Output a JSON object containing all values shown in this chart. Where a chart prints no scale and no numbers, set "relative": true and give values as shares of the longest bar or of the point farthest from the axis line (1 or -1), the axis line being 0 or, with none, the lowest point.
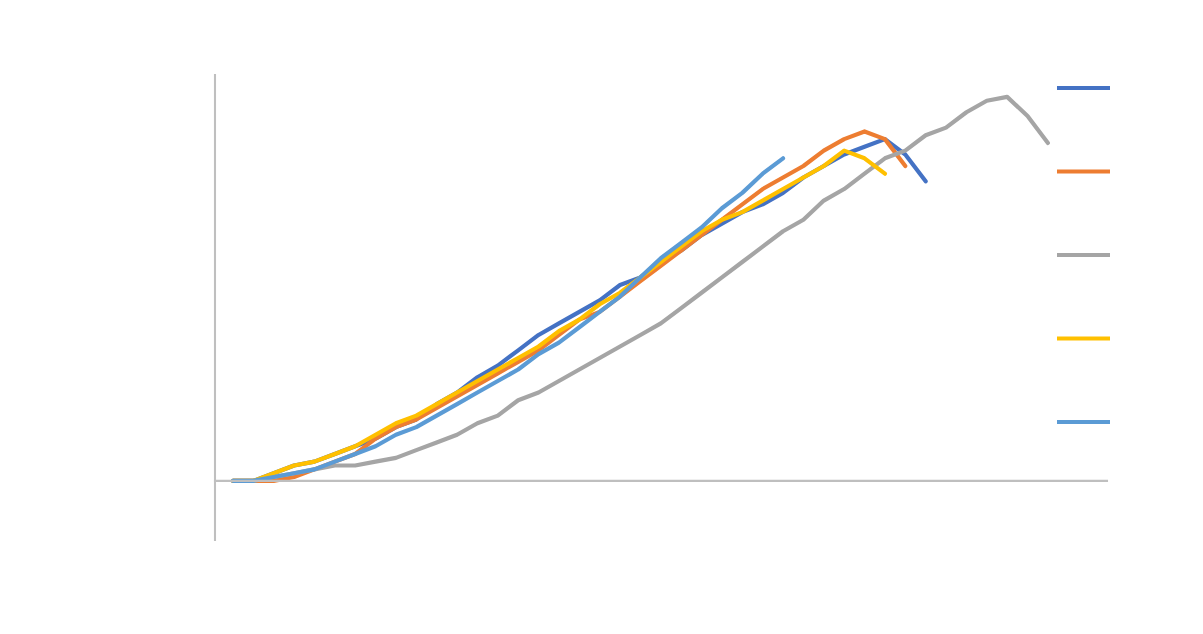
{
  "chart_data": {
    "type": "line",
    "relative": true,
    "grid": false,
    "categories": [
      null,
      null,
      null,
      null,
      null,
      null,
      null,
      null,
      null,
      null,
      null,
      null,
      null,
      null,
      null,
      null,
      null,
      null,
      null,
      null,
      null,
      null,
      null,
      null,
      null,
      null,
      null,
      null,
      null,
      null,
      null,
      null,
      null,
      null,
      null,
      null,
      null,
      null,
      null,
      null,
      null
    ],
    "series": [
      {
        "color": "#4472c4",
        "values": [
          0,
          0,
          0.02,
          0.04,
          0.05,
          0.07,
          0.09,
          0.11,
          0.14,
          0.16,
          0.2,
          0.23,
          0.27,
          0.3,
          0.34,
          0.38,
          0.41,
          0.44,
          0.47,
          0.51,
          0.53,
          0.57,
          0.6,
          0.64,
          0.67,
          0.7,
          0.72,
          0.75,
          0.79,
          0.82,
          0.85,
          0.87,
          0.89,
          0.85,
          0.78,
          null,
          null,
          null,
          null,
          null,
          null
        ]
      },
      {
        "color": "#ed7d31",
        "values": [
          0,
          0,
          0,
          0.01,
          0.03,
          0.05,
          0.07,
          0.11,
          0.14,
          0.16,
          0.19,
          0.22,
          0.25,
          0.28,
          0.31,
          0.34,
          0.38,
          0.42,
          0.44,
          0.48,
          0.52,
          0.56,
          0.6,
          0.64,
          0.68,
          0.72,
          0.76,
          0.79,
          0.82,
          0.86,
          0.89,
          0.91,
          0.89,
          0.82,
          null,
          null,
          null,
          null,
          null,
          null,
          null
        ]
      },
      {
        "color": "#a5a5a5",
        "values": [
          0,
          0,
          0.01,
          0.02,
          0.03,
          0.04,
          0.04,
          0.05,
          0.06,
          0.08,
          0.1,
          0.12,
          0.15,
          0.17,
          0.21,
          0.23,
          0.26,
          0.29,
          0.32,
          0.35,
          0.38,
          0.41,
          0.45,
          0.49,
          0.53,
          0.57,
          0.61,
          0.65,
          0.68,
          0.73,
          0.76,
          0.8,
          0.84,
          0.86,
          0.9,
          0.92,
          0.96,
          0.99,
          1,
          0.95,
          0.88
        ]
      },
      {
        "color": "#ffc000",
        "values": [
          0,
          0,
          0.02,
          0.04,
          0.05,
          0.07,
          0.09,
          0.12,
          0.15,
          0.17,
          0.2,
          0.23,
          0.26,
          0.29,
          0.32,
          0.35,
          0.39,
          0.42,
          0.46,
          0.49,
          0.53,
          0.57,
          0.61,
          0.65,
          0.68,
          0.7,
          0.73,
          0.76,
          0.79,
          0.82,
          0.86,
          0.84,
          0.8,
          null,
          null,
          null,
          null,
          null,
          null,
          null,
          null
        ]
      },
      {
        "color": "#5b9bd5",
        "values": [
          0,
          0,
          0.01,
          0.02,
          0.03,
          0.05,
          0.07,
          0.09,
          0.12,
          0.14,
          0.17,
          0.2,
          0.23,
          0.26,
          0.29,
          0.33,
          0.36,
          0.4,
          0.44,
          0.48,
          0.53,
          0.58,
          0.62,
          0.66,
          0.71,
          0.75,
          0.8,
          0.84,
          null,
          null,
          null,
          null,
          null,
          null,
          null,
          null,
          null,
          null,
          null,
          null,
          null
        ]
      }
    ]
  }
}
